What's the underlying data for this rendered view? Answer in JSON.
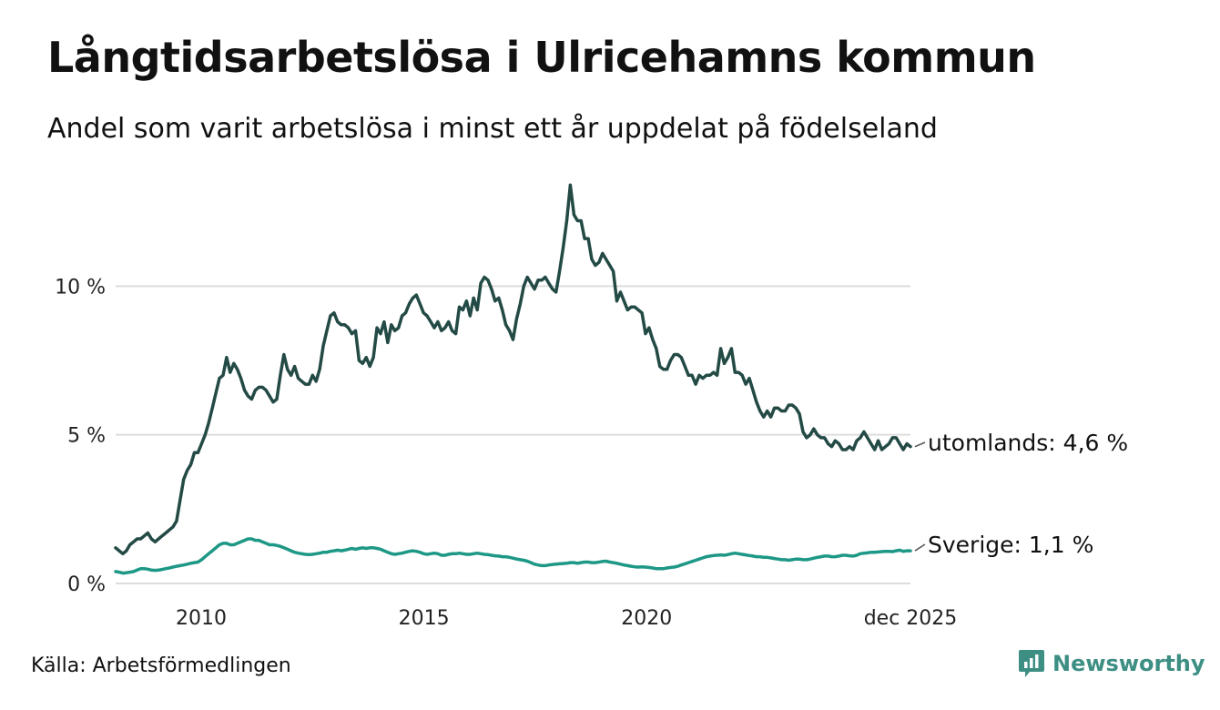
{
  "header": {
    "title": "Långtidsarbetslösa i Ulricehamns kommun",
    "subtitle": "Andel som varit arbetslösa i minst ett år uppdelat på födelseland"
  },
  "footer": {
    "source": "Källa: Arbetsförmedlingen",
    "brand": "Newsworthy",
    "brand_icon": "newsworthy-logo-icon"
  },
  "colors": {
    "utomlands": "#234a45",
    "sverige": "#1e9886",
    "grid": "#dddddd",
    "brand": "#3d8f84"
  },
  "chart_data": {
    "type": "line",
    "title": "Långtidsarbetslösa i Ulricehamns kommun",
    "subtitle": "Andel som varit arbetslösa i minst ett år uppdelat på födelseland",
    "xlabel": "",
    "ylabel": "",
    "unit": "%",
    "x_start": 2008.08,
    "x_end": 2025.92,
    "xlim": [
      2008.08,
      2025.92
    ],
    "ylim": [
      0,
      13.5
    ],
    "grid": true,
    "yticks": [
      0,
      5,
      10
    ],
    "ytick_labels": [
      "0 %",
      "5 %",
      "10 %"
    ],
    "xticks": [
      2010,
      2015,
      2020,
      2025.92
    ],
    "xtick_labels": [
      "2010",
      "2015",
      "2020",
      "dec 2025"
    ],
    "series": [
      {
        "name": "utomlands",
        "end_label": "utomlands: 4,6 %",
        "color": "#234a45",
        "values": [
          1.2,
          1.1,
          1.0,
          1.1,
          1.3,
          1.4,
          1.5,
          1.5,
          1.6,
          1.7,
          1.5,
          1.4,
          1.5,
          1.6,
          1.7,
          1.8,
          1.9,
          2.1,
          2.8,
          3.5,
          3.8,
          4.0,
          4.4,
          4.4,
          4.7,
          5.0,
          5.4,
          5.9,
          6.4,
          6.9,
          7.0,
          7.6,
          7.1,
          7.4,
          7.2,
          6.9,
          6.5,
          6.3,
          6.2,
          6.5,
          6.6,
          6.6,
          6.5,
          6.3,
          6.1,
          6.2,
          7.0,
          7.7,
          7.2,
          7.0,
          7.3,
          6.9,
          6.8,
          6.7,
          6.7,
          7.0,
          6.8,
          7.2,
          8.0,
          8.5,
          9.0,
          9.1,
          8.8,
          8.7,
          8.7,
          8.6,
          8.4,
          8.5,
          7.5,
          7.4,
          7.6,
          7.3,
          7.6,
          8.6,
          8.4,
          8.8,
          8.1,
          8.7,
          8.5,
          8.6,
          9.0,
          9.1,
          9.4,
          9.6,
          9.7,
          9.4,
          9.1,
          9.0,
          8.8,
          8.6,
          8.8,
          8.5,
          8.6,
          8.8,
          8.5,
          8.4,
          9.3,
          9.2,
          9.5,
          9.0,
          9.6,
          9.2,
          10.1,
          10.3,
          10.2,
          9.9,
          9.5,
          9.6,
          9.2,
          8.7,
          8.5,
          8.2,
          8.9,
          9.4,
          10.0,
          10.3,
          10.1,
          9.9,
          10.2,
          10.2,
          10.3,
          10.1,
          9.9,
          9.8,
          10.5,
          11.3,
          12.2,
          13.4,
          12.4,
          12.2,
          12.2,
          11.6,
          11.6,
          10.9,
          10.7,
          10.8,
          11.1,
          10.9,
          10.7,
          10.5,
          9.5,
          9.8,
          9.5,
          9.2,
          9.3,
          9.3,
          9.2,
          9.1,
          8.4,
          8.6,
          8.2,
          7.9,
          7.3,
          7.2,
          7.2,
          7.5,
          7.7,
          7.7,
          7.6,
          7.3,
          7.0,
          7.0,
          6.7,
          7.0,
          6.9,
          7.0,
          7.0,
          7.1,
          7.0,
          7.9,
          7.4,
          7.6,
          7.9,
          7.1,
          7.1,
          7.0,
          6.7,
          6.9,
          6.5,
          6.1,
          5.8,
          5.6,
          5.8,
          5.6,
          5.9,
          5.9,
          5.8,
          5.8,
          6.0,
          6.0,
          5.9,
          5.7,
          5.1,
          4.9,
          5.0,
          5.2,
          5.0,
          4.9,
          4.9,
          4.7,
          4.6,
          4.8,
          4.7,
          4.5,
          4.5,
          4.6,
          4.5,
          4.8,
          4.9,
          5.1,
          4.9,
          4.7,
          4.5,
          4.8,
          4.5,
          4.6,
          4.7,
          4.9,
          4.9,
          4.7,
          4.5,
          4.7,
          4.6
        ]
      },
      {
        "name": "Sverige",
        "end_label": "Sverige: 1,1 %",
        "color": "#1e9886",
        "values": [
          0.4,
          0.38,
          0.35,
          0.36,
          0.38,
          0.4,
          0.45,
          0.5,
          0.5,
          0.48,
          0.45,
          0.44,
          0.45,
          0.47,
          0.5,
          0.52,
          0.55,
          0.58,
          0.6,
          0.62,
          0.65,
          0.68,
          0.7,
          0.72,
          0.8,
          0.9,
          1.0,
          1.1,
          1.2,
          1.3,
          1.35,
          1.35,
          1.3,
          1.3,
          1.35,
          1.4,
          1.45,
          1.5,
          1.5,
          1.45,
          1.45,
          1.4,
          1.35,
          1.3,
          1.3,
          1.28,
          1.25,
          1.2,
          1.15,
          1.1,
          1.05,
          1.02,
          1.0,
          0.98,
          0.97,
          0.98,
          1.0,
          1.02,
          1.05,
          1.05,
          1.08,
          1.1,
          1.12,
          1.1,
          1.12,
          1.15,
          1.18,
          1.15,
          1.18,
          1.2,
          1.18,
          1.2,
          1.2,
          1.18,
          1.15,
          1.1,
          1.05,
          1.0,
          0.98,
          1.0,
          1.02,
          1.05,
          1.08,
          1.1,
          1.08,
          1.05,
          1.0,
          0.98,
          1.0,
          1.02,
          1.0,
          0.95,
          0.95,
          0.98,
          1.0,
          1.0,
          1.02,
          1.0,
          0.98,
          0.98,
          1.0,
          1.02,
          1.0,
          0.98,
          0.97,
          0.95,
          0.93,
          0.92,
          0.9,
          0.9,
          0.88,
          0.85,
          0.82,
          0.8,
          0.78,
          0.75,
          0.7,
          0.65,
          0.62,
          0.6,
          0.6,
          0.62,
          0.64,
          0.65,
          0.66,
          0.67,
          0.68,
          0.7,
          0.7,
          0.68,
          0.7,
          0.72,
          0.72,
          0.7,
          0.7,
          0.72,
          0.74,
          0.75,
          0.72,
          0.7,
          0.68,
          0.65,
          0.62,
          0.6,
          0.58,
          0.56,
          0.55,
          0.56,
          0.55,
          0.54,
          0.52,
          0.5,
          0.5,
          0.5,
          0.52,
          0.54,
          0.55,
          0.58,
          0.62,
          0.66,
          0.7,
          0.74,
          0.78,
          0.82,
          0.86,
          0.9,
          0.92,
          0.94,
          0.95,
          0.96,
          0.95,
          0.97,
          1.0,
          1.02,
          1.0,
          0.98,
          0.96,
          0.94,
          0.92,
          0.9,
          0.9,
          0.88,
          0.88,
          0.86,
          0.84,
          0.82,
          0.8,
          0.8,
          0.78,
          0.8,
          0.82,
          0.82,
          0.8,
          0.8,
          0.82,
          0.85,
          0.88,
          0.9,
          0.92,
          0.92,
          0.9,
          0.9,
          0.92,
          0.95,
          0.95,
          0.93,
          0.92,
          0.95,
          1.0,
          1.02,
          1.03,
          1.05,
          1.05,
          1.06,
          1.07,
          1.08,
          1.08,
          1.07,
          1.1,
          1.12,
          1.08,
          1.1,
          1.1
        ]
      }
    ]
  }
}
